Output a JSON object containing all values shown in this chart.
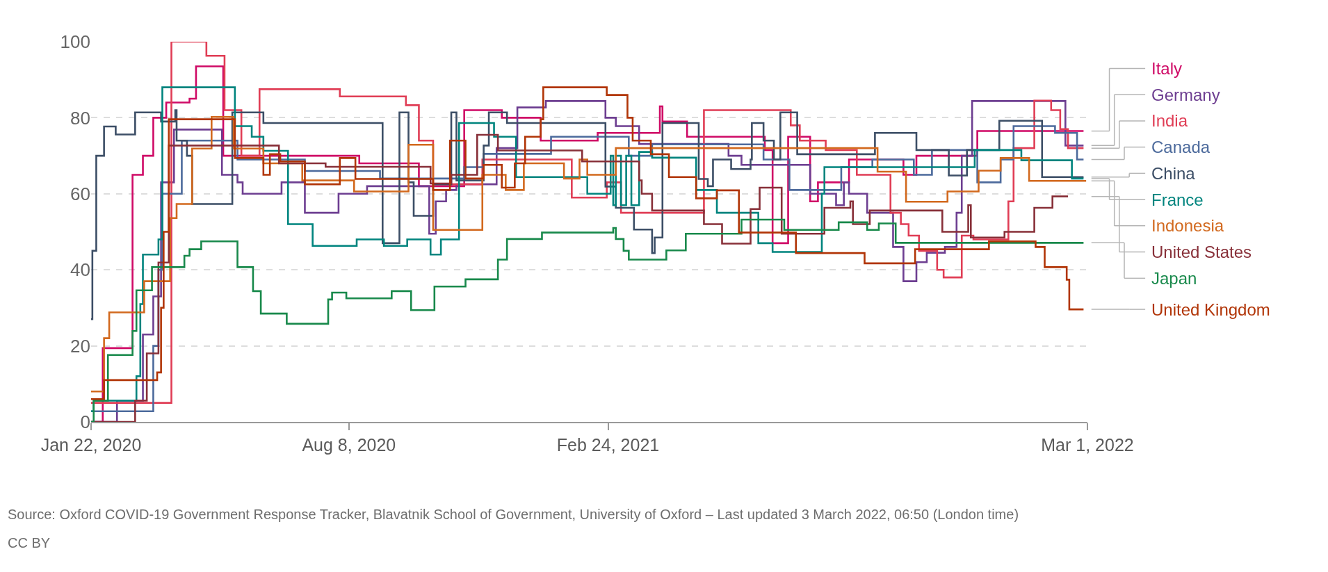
{
  "chart_data": {
    "type": "step",
    "xlim": [
      "2020-01-22",
      "2022-03-01"
    ],
    "xticks": [
      {
        "value": "2020-01-22",
        "label": "Jan 22, 2020"
      },
      {
        "value": "2020-08-08",
        "label": "Aug 8, 2020"
      },
      {
        "value": "2021-02-24",
        "label": "Feb 24, 2021"
      },
      {
        "value": "2022-03-01",
        "label": "Mar 1, 2022"
      }
    ],
    "ylim": [
      0,
      100
    ],
    "yticks": [
      0,
      20,
      40,
      60,
      80,
      100
    ],
    "grid": "y",
    "legend": false,
    "annotations": [
      "Source: Oxford COVID-19 Government Response Tracker, Blavatnik School of Government, University of Oxford – Last updated 3 March 2022, 06:50 (London time)",
      "CC BY"
    ],
    "series": [
      {
        "name": "Italy",
        "color": "#cf0a66",
        "x": [
          "2020-01-22",
          "2020-01-31",
          "2020-02-23",
          "2020-03-02",
          "2020-03-10",
          "2020-03-20",
          "2020-04-07",
          "2020-04-12",
          "2020-05-03",
          "2020-08-16",
          "2020-10-01",
          "2020-11-05",
          "2020-12-04",
          "2021-01-03",
          "2021-02-16",
          "2021-04-05",
          "2021-04-07",
          "2021-04-26",
          "2021-06-25",
          "2021-07-01",
          "2021-07-13",
          "2021-07-30",
          "2021-08-05",
          "2021-08-29",
          "2021-10-10",
          "2021-10-20",
          "2021-12-06",
          "2022-02-26"
        ],
        "values": [
          0,
          19.4,
          65,
          70,
          80,
          84,
          85,
          93.5,
          70,
          68,
          62,
          82,
          80,
          74,
          76,
          83,
          79,
          75,
          71.5,
          47,
          75,
          58,
          63,
          69,
          65,
          70,
          76.5,
          76.5
        ]
      },
      {
        "name": "Germany",
        "color": "#6d3e91",
        "x": [
          "2020-01-22",
          "2020-02-11",
          "2020-03-02",
          "2020-03-10",
          "2020-03-16",
          "2020-03-26",
          "2020-05-02",
          "2020-05-14",
          "2020-05-18",
          "2020-06-17",
          "2020-07-05",
          "2020-07-31",
          "2020-08-22",
          "2020-10-09",
          "2020-10-14",
          "2020-10-22",
          "2020-10-30",
          "2020-11-30",
          "2020-12-16",
          "2021-01-07",
          "2021-02-22",
          "2021-03-02",
          "2021-03-20",
          "2021-05-28",
          "2021-06-07",
          "2021-07-30",
          "2021-08-19",
          "2021-08-25",
          "2021-08-29",
          "2021-09-12",
          "2021-10-02",
          "2021-10-10",
          "2021-10-20",
          "2021-10-28",
          "2021-11-11",
          "2021-11-20",
          "2021-11-24",
          "2021-12-02",
          "2022-02-12",
          "2022-02-26"
        ],
        "values": [
          0,
          5.6,
          23,
          33,
          63,
          76.9,
          65,
          63,
          60,
          63,
          55,
          60,
          62,
          49.5,
          58,
          61,
          62.5,
          72,
          82.7,
          84.4,
          80,
          77.8,
          73.1,
          70,
          67.6,
          60,
          57,
          63,
          60,
          55,
          46,
          37,
          42,
          44.5,
          46,
          55,
          70,
          84.4,
          72.7,
          72.7
        ]
      },
      {
        "name": "India",
        "color": "#e03d55",
        "x": [
          "2020-01-22",
          "2020-03-24",
          "2020-04-20",
          "2020-05-04",
          "2020-05-17",
          "2020-05-31",
          "2020-08-01",
          "2020-09-21",
          "2020-10-01",
          "2020-10-12",
          "2020-11-19",
          "2021-01-27",
          "2021-02-23",
          "2021-03-06",
          "2021-05-09",
          "2021-07-15",
          "2021-07-22",
          "2021-08-11",
          "2021-09-04",
          "2021-09-30",
          "2021-10-08",
          "2021-10-14",
          "2021-10-22",
          "2021-11-05",
          "2021-11-10",
          "2021-11-24",
          "2021-12-03",
          "2021-12-30",
          "2022-01-03",
          "2022-01-19",
          "2022-02-01",
          "2022-02-08",
          "2022-02-14",
          "2022-02-26"
        ],
        "values": [
          5,
          100,
          96.3,
          82,
          70,
          87.5,
          85.6,
          83.3,
          74,
          62.5,
          69,
          59,
          63,
          55,
          82,
          78,
          74,
          71.5,
          65,
          55,
          52,
          49,
          45,
          40,
          38,
          49,
          48,
          58,
          72,
          84.5,
          82,
          77,
          72,
          72
        ]
      },
      {
        "name": "Canada",
        "color": "#4c6a9c",
        "x": [
          "2020-01-22",
          "2020-03-10",
          "2020-03-14",
          "2020-03-17",
          "2020-04-01",
          "2020-05-14",
          "2020-07-05",
          "2020-09-01",
          "2020-11-05",
          "2020-11-20",
          "2021-01-11",
          "2021-03-12",
          "2021-03-30",
          "2021-06-24",
          "2021-07-14",
          "2021-08-23",
          "2021-09-16",
          "2021-10-18",
          "2021-11-01",
          "2021-12-06",
          "2021-12-24",
          "2022-01-03",
          "2022-02-04",
          "2022-02-21",
          "2022-02-26"
        ],
        "values": [
          2.8,
          20,
          40,
          60,
          74,
          69,
          66,
          64,
          67,
          70.5,
          75,
          70,
          73,
          69,
          61,
          67,
          69,
          65,
          71.5,
          63,
          69,
          77.8,
          76,
          69,
          69
        ]
      },
      {
        "name": "China",
        "color": "#3c4e66",
        "x": [
          "2020-01-22",
          "2020-01-23",
          "2020-01-26",
          "2020-02-01",
          "2020-02-10",
          "2020-02-25",
          "2020-03-16",
          "2020-03-27",
          "2020-03-28",
          "2020-04-05",
          "2020-04-09",
          "2020-05-10",
          "2020-06-03",
          "2020-09-03",
          "2020-09-16",
          "2020-09-23",
          "2020-09-27",
          "2020-10-12",
          "2020-10-26",
          "2020-10-30",
          "2020-11-20",
          "2020-11-24",
          "2020-12-08",
          "2021-02-22",
          "2021-03-02",
          "2021-03-16",
          "2021-03-30",
          "2021-04-01",
          "2021-04-07",
          "2021-05-05",
          "2021-05-12",
          "2021-05-16",
          "2021-05-30",
          "2021-06-14",
          "2021-06-15",
          "2021-06-24",
          "2021-07-02",
          "2021-07-07",
          "2021-07-20",
          "2021-09-18",
          "2021-10-20",
          "2021-11-14",
          "2021-11-28",
          "2021-12-23",
          "2022-01-25",
          "2022-02-26"
        ],
        "values": [
          27,
          45,
          70,
          77.7,
          75.6,
          81.4,
          79,
          82,
          74,
          70,
          57.3,
          81.4,
          78.6,
          47,
          81.4,
          63,
          54.2,
          62.5,
          81.4,
          63.5,
          72.7,
          81.4,
          78.6,
          61.9,
          56.3,
          50.6,
          44.4,
          48.5,
          78.6,
          63.9,
          62,
          69,
          66.5,
          69,
          78.6,
          74,
          69,
          81.4,
          70.4,
          76,
          71.5,
          64.8,
          71.5,
          79.2,
          64.4,
          64.4
        ]
      },
      {
        "name": "France",
        "color": "#00847e",
        "x": [
          "2020-01-22",
          "2020-01-24",
          "2020-02-26",
          "2020-02-29",
          "2020-03-02",
          "2020-03-14",
          "2020-03-17",
          "2020-05-12",
          "2020-05-25",
          "2020-06-03",
          "2020-06-22",
          "2020-07-11",
          "2020-08-14",
          "2020-09-04",
          "2020-09-22",
          "2020-10-10",
          "2020-10-18",
          "2020-11-01",
          "2020-11-28",
          "2020-12-15",
          "2021-02-08",
          "2021-02-26",
          "2021-02-28",
          "2021-03-02",
          "2021-03-06",
          "2021-03-10",
          "2021-03-14",
          "2021-03-20",
          "2021-03-30",
          "2021-05-03",
          "2021-05-19",
          "2021-06-20",
          "2021-07-01",
          "2021-08-08",
          "2021-08-10",
          "2021-12-04",
          "2022-01-09",
          "2022-02-17",
          "2022-02-26"
        ],
        "values": [
          2.8,
          5.6,
          12,
          31,
          44,
          48,
          88,
          77.8,
          75,
          71.3,
          52,
          46.3,
          48,
          46.3,
          48,
          44,
          48,
          78.6,
          75,
          64.4,
          60,
          70,
          57,
          70,
          57,
          70,
          57,
          71,
          69.5,
          61,
          55,
          47,
          44.7,
          60,
          67,
          71.5,
          68.8,
          64,
          64
        ]
      },
      {
        "name": "Indonesia",
        "color": "#d2691e",
        "x": [
          "2020-01-22",
          "2020-02-01",
          "2020-02-05",
          "2020-03-03",
          "2020-03-23",
          "2020-03-28",
          "2020-04-09",
          "2020-04-24",
          "2020-05-11",
          "2020-06-03",
          "2020-07-03",
          "2020-08-12",
          "2020-09-23",
          "2020-10-12",
          "2020-11-19",
          "2020-12-07",
          "2020-12-21",
          "2021-01-21",
          "2021-02-02",
          "2021-02-08",
          "2021-03-02",
          "2021-09-20",
          "2021-10-12",
          "2021-11-13",
          "2021-12-07",
          "2021-12-24",
          "2022-01-15",
          "2022-02-28"
        ],
        "values": [
          8,
          22,
          28.8,
          37,
          53.6,
          57.3,
          71.9,
          80.2,
          71.9,
          68,
          63.5,
          60.6,
          72.9,
          50.5,
          65,
          61,
          68,
          64,
          69,
          65,
          72,
          65.8,
          57.9,
          60.6,
          66.1,
          69.4,
          63.4,
          63.4
        ]
      },
      {
        "name": "United States",
        "color": "#883039",
        "x": [
          "2020-01-22",
          "2020-02-25",
          "2020-03-05",
          "2020-03-14",
          "2020-03-22",
          "2020-06-15",
          "2020-07-21",
          "2020-10-10",
          "2020-10-26",
          "2020-11-15",
          "2020-12-01",
          "2021-02-04",
          "2021-03-20",
          "2021-03-22",
          "2021-03-30",
          "2021-05-09",
          "2021-05-23",
          "2021-06-14",
          "2021-06-21",
          "2021-07-08",
          "2021-08-10",
          "2021-08-30",
          "2021-09-01",
          "2021-09-14",
          "2021-11-09",
          "2021-11-29",
          "2021-12-01",
          "2021-12-27",
          "2022-01-19",
          "2022-02-02",
          "2022-02-14"
        ],
        "values": [
          0,
          5.6,
          18,
          41.9,
          72.7,
          68,
          67.1,
          62.7,
          65,
          75.5,
          71.4,
          68.5,
          63.5,
          60,
          55.6,
          52,
          46.9,
          56,
          61.6,
          49.5,
          56.3,
          58,
          52,
          55.6,
          50,
          57,
          48.5,
          50,
          56.3,
          59.3,
          59.3
        ]
      },
      {
        "name": "Japan",
        "color": "#18894b",
        "x": [
          "2020-01-22",
          "2020-01-24",
          "2020-02-04",
          "2020-02-23",
          "2020-02-26",
          "2020-03-09",
          "2020-04-03",
          "2020-04-07",
          "2020-04-16",
          "2020-05-14",
          "2020-05-26",
          "2020-06-01",
          "2020-06-21",
          "2020-07-23",
          "2020-07-26",
          "2020-08-06",
          "2020-09-10",
          "2020-09-25",
          "2020-10-13",
          "2020-11-06",
          "2020-12-01",
          "2020-12-08",
          "2021-01-04",
          "2021-02-28",
          "2021-03-02",
          "2021-03-08",
          "2021-03-12",
          "2021-04-10",
          "2021-04-25",
          "2021-06-07",
          "2021-07-10",
          "2021-08-21",
          "2021-09-12",
          "2021-09-21",
          "2021-10-04",
          "2022-02-26"
        ],
        "values": [
          0,
          5.6,
          17.6,
          23.9,
          34.6,
          40.7,
          43.7,
          45.4,
          47.5,
          40.7,
          34.4,
          28.5,
          25.8,
          32.2,
          34,
          32.5,
          34.4,
          29.4,
          35.6,
          37.5,
          42.7,
          48.1,
          49.8,
          51,
          48.1,
          45,
          42.7,
          45.1,
          49.5,
          53.2,
          50.5,
          52.5,
          50.5,
          52.2,
          47.1,
          47.1
        ]
      },
      {
        "name": "United Kingdom",
        "color": "#b13507",
        "x": [
          "2020-01-22",
          "2020-02-01",
          "2020-03-13",
          "2020-03-16",
          "2020-03-18",
          "2020-03-22",
          "2020-05-12",
          "2020-06-03",
          "2020-06-08",
          "2020-06-16",
          "2020-07-05",
          "2020-08-01",
          "2020-08-13",
          "2020-10-12",
          "2020-10-25",
          "2020-11-06",
          "2020-11-20",
          "2020-12-04",
          "2020-12-14",
          "2020-12-22",
          "2021-01-03",
          "2021-01-05",
          "2021-02-23",
          "2021-03-11",
          "2021-03-15",
          "2021-03-29",
          "2021-04-12",
          "2021-05-03",
          "2021-05-19",
          "2021-06-05",
          "2021-07-19",
          "2021-09-10",
          "2021-10-19",
          "2021-12-15",
          "2022-01-20",
          "2022-01-27",
          "2022-02-13",
          "2022-02-15",
          "2022-02-26"
        ],
        "values": [
          6,
          11,
          13,
          30,
          50,
          79.6,
          69.4,
          65,
          70.4,
          68.5,
          62.5,
          69.4,
          63.9,
          61,
          74,
          64,
          67.6,
          61.6,
          68,
          75,
          79.6,
          88,
          86,
          80,
          74,
          70.4,
          64.4,
          58.8,
          60.9,
          49.8,
          44.4,
          41.7,
          45.4,
          47.5,
          46,
          40.7,
          37.4,
          29.6,
          29.6
        ]
      }
    ]
  }
}
